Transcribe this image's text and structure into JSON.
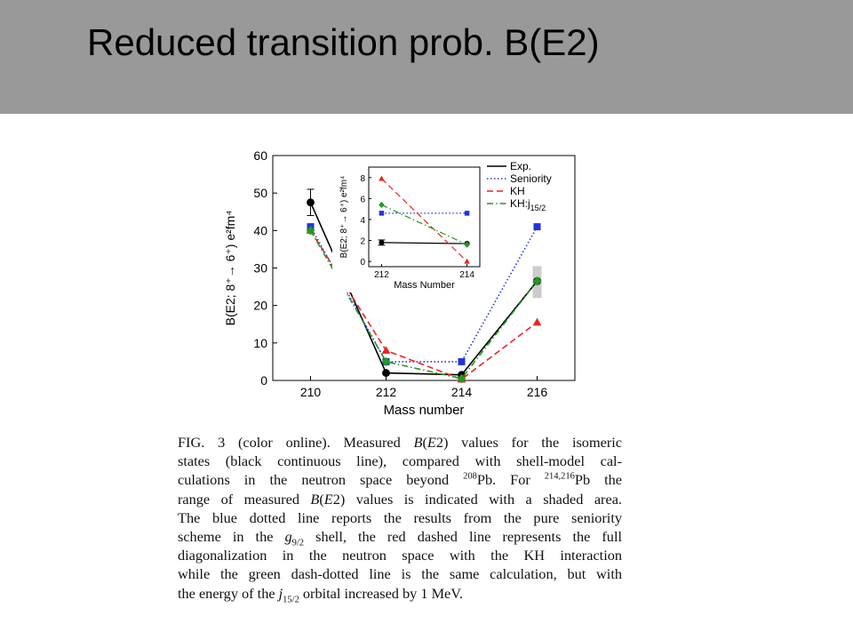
{
  "slide": {
    "title": "Reduced transition prob. B(E2)"
  },
  "colors": {
    "header_bg": "#999999",
    "exp": "#000000",
    "seniority": "#2233dd",
    "kh": "#ee2222",
    "kh_j": "#229922",
    "shade": "#cccccc"
  },
  "chart_data": [
    {
      "type": "line",
      "xlabel": "Mass number",
      "ylabel": "B(E2; 8⁺→ 6⁺) e²fm⁴",
      "x": [
        210,
        212,
        214,
        216
      ],
      "xlim": [
        209,
        217
      ],
      "ylim": [
        0,
        60
      ],
      "yticks": [
        0,
        10,
        20,
        30,
        40,
        50,
        60
      ],
      "series": [
        {
          "name": "Exp.",
          "x": [
            210,
            212,
            214,
            216
          ],
          "y": [
            47.5,
            2,
            1.5,
            26.5
          ],
          "error": [
            3.5,
            0,
            0,
            0
          ],
          "style": "solid",
          "marker": "circle",
          "color": "#000000"
        },
        {
          "name": "Seniority",
          "x": [
            210,
            212,
            214,
            216
          ],
          "y": [
            41,
            5,
            5,
            41
          ],
          "style": "dotted",
          "marker": "square",
          "color": "#2233dd"
        },
        {
          "name": "KH",
          "x": [
            210,
            212,
            214,
            216
          ],
          "y": [
            40,
            8,
            0.3,
            15.5
          ],
          "style": "dashed",
          "marker": "triangle",
          "color": "#ee2222"
        },
        {
          "name": "KH:j15/2",
          "x": [
            210,
            212,
            214,
            216
          ],
          "y": [
            40,
            5,
            0.5,
            26.5
          ],
          "style": "dashdot",
          "marker": "diamond",
          "color": "#229922"
        }
      ],
      "shaded_range": {
        "x": 216,
        "y": [
          22,
          30.5
        ]
      },
      "legend": {
        "entries": [
          {
            "label": "Exp."
          },
          {
            "label": "Seniority"
          },
          {
            "label": "KH"
          },
          {
            "label": "KH:j",
            "subscript": "15/2"
          }
        ],
        "placement": "top-right"
      }
    },
    {
      "type": "line",
      "role": "inset",
      "xlabel": "Mass Number",
      "ylabel": "B(E2; 8⁺→ 6⁺) e²fm⁴",
      "x": [
        212,
        214
      ],
      "xlim": [
        211.7,
        214.3
      ],
      "ylim": [
        -0.5,
        9
      ],
      "yticks": [
        0,
        2,
        4,
        6,
        8
      ],
      "series": [
        {
          "name": "Exp.",
          "x": [
            212,
            214
          ],
          "y": [
            1.8,
            1.7
          ],
          "error": [
            0.25,
            0
          ],
          "style": "solid",
          "marker": "circle",
          "color": "#000000"
        },
        {
          "name": "Seniority",
          "x": [
            212,
            214
          ],
          "y": [
            4.6,
            4.6
          ],
          "style": "dotted",
          "marker": "square",
          "color": "#2233dd"
        },
        {
          "name": "KH",
          "x": [
            212,
            214
          ],
          "y": [
            7.9,
            0
          ],
          "style": "dashed",
          "marker": "triangle",
          "color": "#ee2222"
        },
        {
          "name": "KH:j15/2",
          "x": [
            212,
            214
          ],
          "y": [
            5.4,
            1.6
          ],
          "style": "dashdot",
          "marker": "diamond",
          "color": "#229922"
        }
      ]
    }
  ],
  "caption": {
    "line1": {
      "a": "FIG. 3 (color online).   Measured ",
      "b": " values for the isomeric"
    },
    "line2": "states (black continuous line), compared with shell-model cal-",
    "line3": {
      "a": "culations in the neutron space beyond ",
      "sup1": "208",
      "b": "Pb. For ",
      "sup2": "214,216",
      "c": "Pb the"
    },
    "line4": {
      "a": "range of measured ",
      "b": " values is indicated with a shaded area."
    },
    "line5": "The blue dotted line reports the results from the pure seniority",
    "line6": {
      "a": "scheme in the ",
      "g": "g",
      "sub": "9/2",
      "b": " shell, the red dashed line represents the full"
    },
    "line7": "diagonalization in the neutron space with the KH interaction",
    "line8": "while the green dash-dotted line is the same calculation, but with",
    "line9": {
      "a": "the energy of the ",
      "j": "j",
      "sub": "15/2",
      "b": " orbital increased by 1 MeV."
    }
  }
}
